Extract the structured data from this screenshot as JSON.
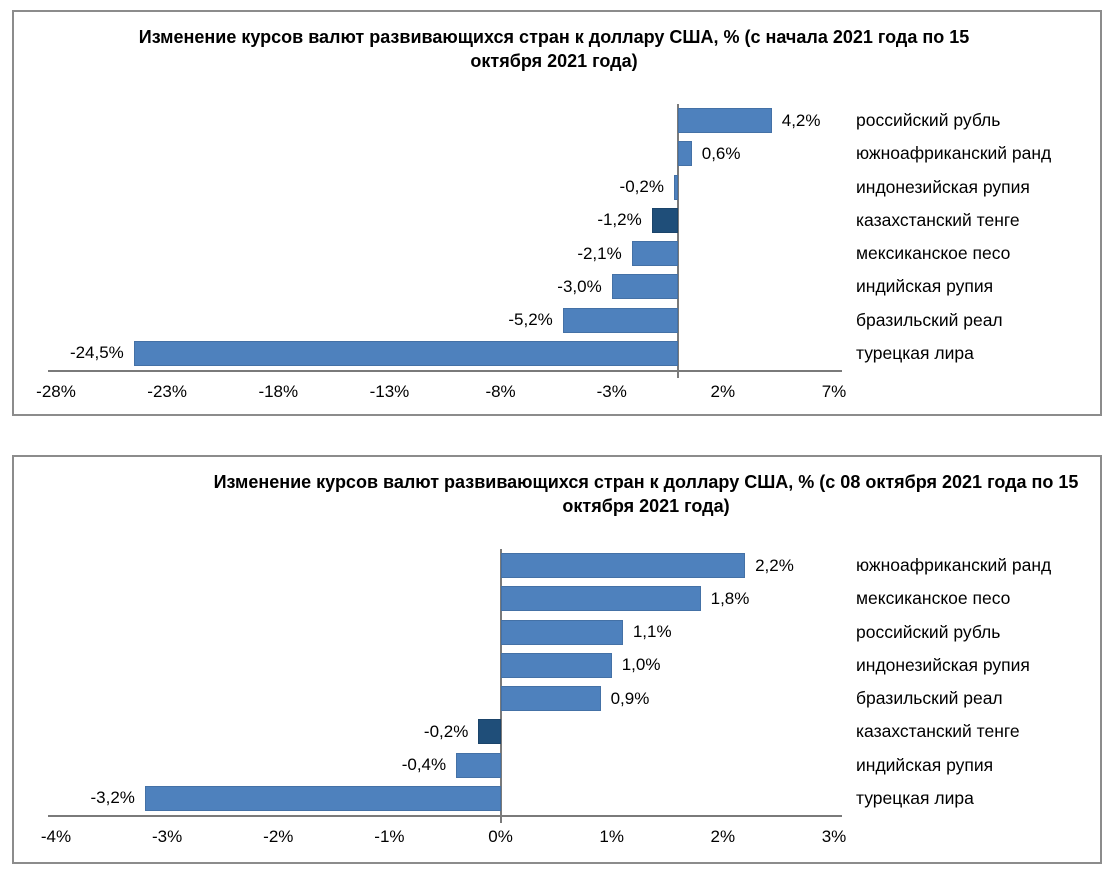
{
  "colors": {
    "bar": "#4E81BD",
    "bar_highlight": "#1F4E79",
    "axis_line": "#7A7A7A",
    "box_border": "#8C8C8C",
    "text": "#000000"
  },
  "chart_data": [
    {
      "type": "bar",
      "orientation": "horizontal",
      "title": "Изменение курсов валют развивающихся стран к доллару США, % (с начала 2021 года по 15 октября 2021 года)",
      "categories": [
        "российский рубль",
        "южноафриканский ранд",
        "индонезийская рупия",
        "казахстанский тенге",
        "мексиканское песо",
        "индийская рупия",
        "бразильский реал",
        "турецкая лира"
      ],
      "values": [
        4.2,
        0.6,
        -0.2,
        -1.2,
        -2.1,
        -3.0,
        -5.2,
        -24.5
      ],
      "value_labels": [
        "4,2%",
        "0,6%",
        "-0,2%",
        "-1,2%",
        "-2,1%",
        "-3,0%",
        "-5,2%",
        "-24,5%"
      ],
      "highlight_index": 3,
      "highlight_category": "казахстанский тенге",
      "xlim": [
        -28,
        7
      ],
      "xticks": [
        -28,
        -23,
        -18,
        -13,
        -8,
        -3,
        2,
        7
      ],
      "xtick_labels": [
        "-28%",
        "-23%",
        "-18%",
        "-13%",
        "-8%",
        "-3%",
        "2%",
        "7%"
      ],
      "grid": false,
      "legend": false
    },
    {
      "type": "bar",
      "orientation": "horizontal",
      "title": "Изменение курсов валют развивающихся стран к доллару США, % (с 08 октября 2021 года по 15 октября 2021 года)",
      "categories": [
        "южноафриканский ранд",
        "мексиканское песо",
        "российский рубль",
        "индонезийская рупия",
        "бразильский реал",
        "казахстанский тенге",
        "индийская рупия",
        "турецкая лира"
      ],
      "values": [
        2.2,
        1.8,
        1.1,
        1.0,
        0.9,
        -0.2,
        -0.4,
        -3.2
      ],
      "value_labels": [
        "2,2%",
        "1,8%",
        "1,1%",
        "1,0%",
        "0,9%",
        "-0,2%",
        "-0,4%",
        "-3,2%"
      ],
      "highlight_index": 5,
      "highlight_category": "казахстанский тенге",
      "xlim": [
        -4,
        3
      ],
      "xticks": [
        -4,
        -3,
        -2,
        -1,
        0,
        1,
        2,
        3
      ],
      "xtick_labels": [
        "-4%",
        "-3%",
        "-2%",
        "-1%",
        "0%",
        "1%",
        "2%",
        "3%"
      ],
      "grid": false,
      "legend": false
    }
  ]
}
